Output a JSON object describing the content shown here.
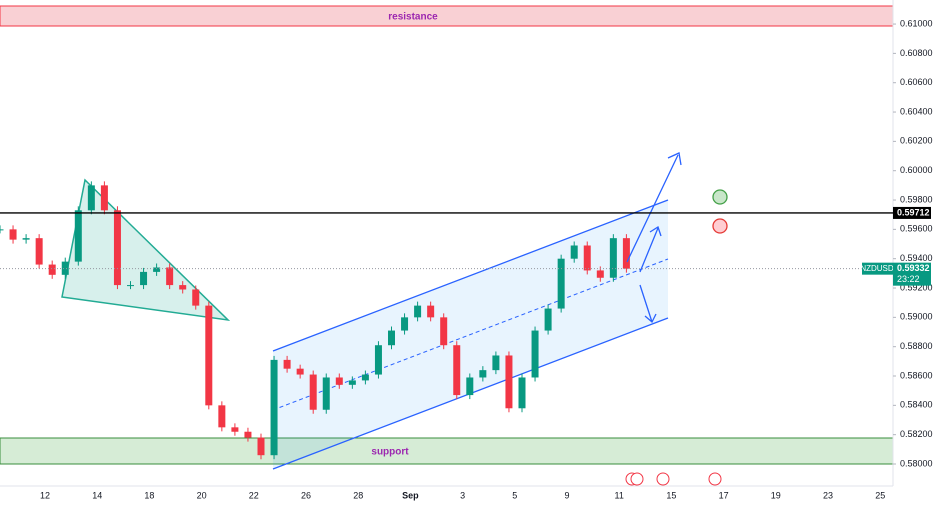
{
  "chart_data": {
    "type": "candles",
    "symbol": "NZDUSD",
    "values": [
      0.596,
      0.5953,
      0.5954,
      0.5936,
      0.5929,
      0.5938,
      0.5973,
      0.599,
      0.5973,
      0.5922,
      0.5922,
      0.5931,
      0.5934,
      0.5922,
      0.5919,
      0.5908,
      0.584,
      0.5825,
      0.5822,
      0.5818,
      0.5806,
      0.5871,
      0.5865,
      0.5861,
      0.5837,
      0.5859,
      0.5854,
      0.5857,
      0.5861,
      0.5881,
      0.5891,
      0.59,
      0.5908,
      0.59,
      0.5881,
      0.5847,
      0.5859,
      0.5864,
      0.5874,
      0.5838,
      0.5859,
      0.5891,
      0.5906,
      0.594,
      0.5949,
      0.5932,
      0.5927,
      0.5954,
      0.59332
    ],
    "up_color": "#089981",
    "down_color": "#f23645",
    "x_labels": [
      "12",
      "14",
      "18",
      "20",
      "22",
      "26",
      "28",
      "Sep",
      "3",
      "5",
      "9",
      "11",
      "15",
      "17",
      "19",
      "23",
      "25"
    ],
    "ylim": [
      0.5785,
      0.61164
    ],
    "yticks": [
      {
        "value": 0.58,
        "label": "0.58000"
      },
      {
        "value": 0.582,
        "label": "0.58200"
      },
      {
        "value": 0.584,
        "label": "0.58400"
      },
      {
        "value": 0.586,
        "label": "0.58600"
      },
      {
        "value": 0.588,
        "label": "0.58800"
      },
      {
        "value": 0.59,
        "label": "0.59000"
      },
      {
        "value": 0.592,
        "label": "0.59200"
      },
      {
        "value": 0.594,
        "label": "0.59400"
      },
      {
        "value": 0.596,
        "label": "0.59600"
      },
      {
        "value": 0.598,
        "label": "0.59800"
      },
      {
        "value": 0.6,
        "label": "0.60000"
      },
      {
        "value": 0.602,
        "label": "0.60200"
      },
      {
        "value": 0.604,
        "label": "0.60400"
      },
      {
        "value": 0.606,
        "label": "0.60600"
      },
      {
        "value": 0.608,
        "label": "0.60800"
      },
      {
        "value": 0.61,
        "label": "0.61000"
      }
    ],
    "key_level": 0.59712,
    "last_price": 0.59332,
    "countdown": "23:22",
    "annotations": {
      "resistance": "resistance",
      "support": "support"
    }
  }
}
